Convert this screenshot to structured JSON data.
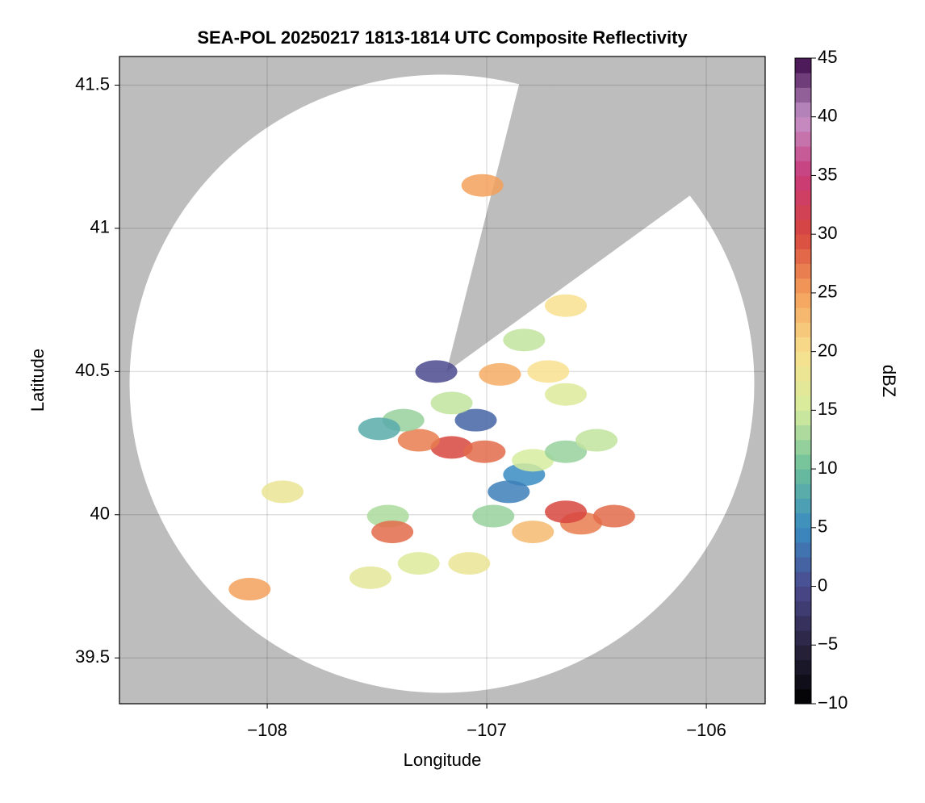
{
  "chart_data": {
    "type": "radar",
    "title": "SEA-POL 20250217 1813-1814 UTC Composite Reflectivity",
    "xlabel": "Longitude",
    "ylabel": "Latitude",
    "xlim": [
      -108.673,
      -105.732
    ],
    "ylim": [
      39.34,
      41.6
    ],
    "xticks": [
      {
        "value": -108,
        "label": "−108"
      },
      {
        "value": -107,
        "label": "−107"
      },
      {
        "value": -106,
        "label": "−106"
      }
    ],
    "yticks": [
      39.5,
      40.0,
      40.5,
      41.0,
      41.5
    ],
    "grid": true,
    "colorbar": {
      "label": "dBZ",
      "lim": [
        -10,
        45
      ],
      "ticks": [
        {
          "value": -10,
          "label": "−10"
        },
        {
          "value": -5,
          "label": "−5"
        },
        0,
        5,
        10,
        15,
        20,
        25,
        30,
        35,
        40,
        45
      ],
      "colors": [
        "#000000",
        "#2a2440",
        "#4b4a8e",
        "#3a8cc2",
        "#6cbf9a",
        "#d6ec9e",
        "#f8e08e",
        "#f3a05a",
        "#d8473f",
        "#c93a7a",
        "#c493c9",
        "#3c0a4a"
      ]
    },
    "echoes": {
      "x": [
        -106.57,
        -106.79,
        -106.42,
        -106.64,
        -106.83,
        -106.9,
        -107.16,
        -107.01,
        -107.31,
        -107.38,
        -107.49,
        -107.05,
        -107.16,
        -106.79,
        -106.64,
        -106.94,
        -106.72,
        -106.83,
        -106.64,
        -106.64,
        -106.5,
        -107.45,
        -107.31,
        -107.08,
        -107.53,
        -107.93,
        -108.08,
        -107.43,
        -107.02,
        -107.23,
        -106.97
      ],
      "y": [
        39.97,
        39.94,
        39.995,
        40.01,
        40.14,
        40.08,
        40.235,
        40.22,
        40.26,
        40.33,
        40.3,
        40.33,
        40.39,
        40.19,
        40.22,
        40.49,
        40.5,
        40.61,
        40.73,
        40.42,
        40.26,
        39.995,
        39.83,
        39.83,
        39.78,
        40.08,
        39.74,
        39.94,
        41.15,
        40.5,
        39.995
      ],
      "values": [
        27,
        23,
        28,
        30,
        5,
        4,
        30,
        28,
        27,
        12,
        8,
        2,
        14,
        15,
        12,
        24,
        20,
        14,
        20,
        16,
        14,
        13,
        16,
        18,
        17,
        18,
        25,
        28,
        25,
        0,
        12
      ]
    }
  }
}
